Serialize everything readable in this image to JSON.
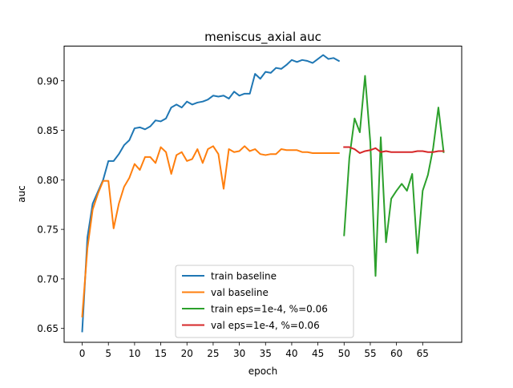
{
  "chart_data": {
    "type": "line",
    "title": "meniscus_axial auc",
    "xlabel": "epoch",
    "ylabel": "auc",
    "xlim": [
      -3.45,
      72.45
    ],
    "ylim": [
      0.636,
      0.935
    ],
    "xticks": [
      0,
      5,
      10,
      15,
      20,
      25,
      30,
      35,
      40,
      45,
      50,
      55,
      60,
      65
    ],
    "yticks": [
      0.65,
      0.7,
      0.75,
      0.8,
      0.85,
      0.9
    ],
    "ytick_labels": [
      "0.65",
      "0.70",
      "0.75",
      "0.80",
      "0.85",
      "0.90"
    ],
    "grid": false,
    "legend_position": "lower-center",
    "series": [
      {
        "name": "train baseline",
        "color": "#1f77b4",
        "x": [
          0,
          1,
          2,
          3,
          4,
          5,
          6,
          7,
          8,
          9,
          10,
          11,
          12,
          13,
          14,
          15,
          16,
          17,
          18,
          19,
          20,
          21,
          22,
          23,
          24,
          25,
          26,
          27,
          28,
          29,
          30,
          31,
          32,
          33,
          34,
          35,
          36,
          37,
          38,
          39,
          40,
          41,
          42,
          43,
          44,
          45,
          46,
          47,
          48,
          49
        ],
        "y": [
          0.647,
          0.742,
          0.776,
          0.788,
          0.8,
          0.819,
          0.819,
          0.826,
          0.835,
          0.84,
          0.852,
          0.853,
          0.851,
          0.854,
          0.86,
          0.859,
          0.862,
          0.873,
          0.876,
          0.873,
          0.879,
          0.876,
          0.878,
          0.879,
          0.881,
          0.885,
          0.884,
          0.885,
          0.882,
          0.889,
          0.885,
          0.887,
          0.887,
          0.907,
          0.902,
          0.909,
          0.908,
          0.913,
          0.912,
          0.916,
          0.921,
          0.919,
          0.921,
          0.92,
          0.918,
          0.922,
          0.926,
          0.922,
          0.923,
          0.92
        ]
      },
      {
        "name": "val baseline",
        "color": "#ff7f0e",
        "x": [
          0,
          1,
          2,
          3,
          4,
          5,
          6,
          7,
          8,
          9,
          10,
          11,
          12,
          13,
          14,
          15,
          16,
          17,
          18,
          19,
          20,
          21,
          22,
          23,
          24,
          25,
          26,
          27,
          28,
          29,
          30,
          31,
          32,
          33,
          34,
          35,
          36,
          37,
          38,
          39,
          40,
          41,
          42,
          43,
          44,
          45,
          46,
          47,
          48,
          49
        ],
        "y": [
          0.662,
          0.731,
          0.77,
          0.786,
          0.799,
          0.799,
          0.751,
          0.776,
          0.793,
          0.802,
          0.816,
          0.81,
          0.823,
          0.823,
          0.817,
          0.833,
          0.828,
          0.806,
          0.825,
          0.828,
          0.819,
          0.821,
          0.831,
          0.817,
          0.831,
          0.834,
          0.826,
          0.791,
          0.831,
          0.828,
          0.829,
          0.834,
          0.829,
          0.831,
          0.826,
          0.825,
          0.826,
          0.826,
          0.831,
          0.83,
          0.83,
          0.83,
          0.828,
          0.828,
          0.827,
          0.827,
          0.827,
          0.827,
          0.827,
          0.827
        ]
      },
      {
        "name": "train eps=1e-4, %=0.06",
        "color": "#2ca02c",
        "x": [
          50,
          51,
          52,
          53,
          54,
          55,
          56,
          57,
          58,
          59,
          60,
          61,
          62,
          63,
          64,
          65,
          66,
          67,
          68,
          69
        ],
        "y": [
          0.744,
          0.822,
          0.862,
          0.848,
          0.905,
          0.838,
          0.703,
          0.843,
          0.737,
          0.781,
          0.789,
          0.796,
          0.789,
          0.806,
          0.726,
          0.789,
          0.805,
          0.832,
          0.873,
          0.828
        ]
      },
      {
        "name": "val eps=1e-4, %=0.06",
        "color": "#d62728",
        "x": [
          50,
          51,
          52,
          53,
          54,
          55,
          56,
          57,
          58,
          59,
          60,
          61,
          62,
          63,
          64,
          65,
          66,
          67,
          68,
          69
        ],
        "y": [
          0.833,
          0.833,
          0.831,
          0.827,
          0.829,
          0.83,
          0.832,
          0.828,
          0.829,
          0.828,
          0.828,
          0.828,
          0.828,
          0.828,
          0.829,
          0.829,
          0.828,
          0.828,
          0.829,
          0.829
        ]
      }
    ]
  }
}
